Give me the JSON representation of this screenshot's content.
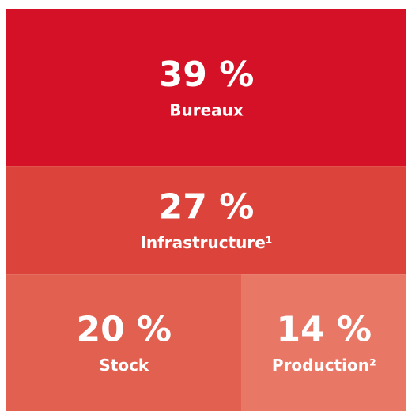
{
  "chart_data": {
    "type": "treemap",
    "categories": [
      "Bureaux",
      "Infrastructure¹",
      "Stock",
      "Production²"
    ],
    "values": [
      39,
      27,
      20,
      14
    ],
    "value_labels": [
      "39 %",
      "27 %",
      "20 %",
      "14 %"
    ],
    "colors": [
      "#d41126",
      "#dc443b",
      "#e26050",
      "#e97766"
    ]
  }
}
